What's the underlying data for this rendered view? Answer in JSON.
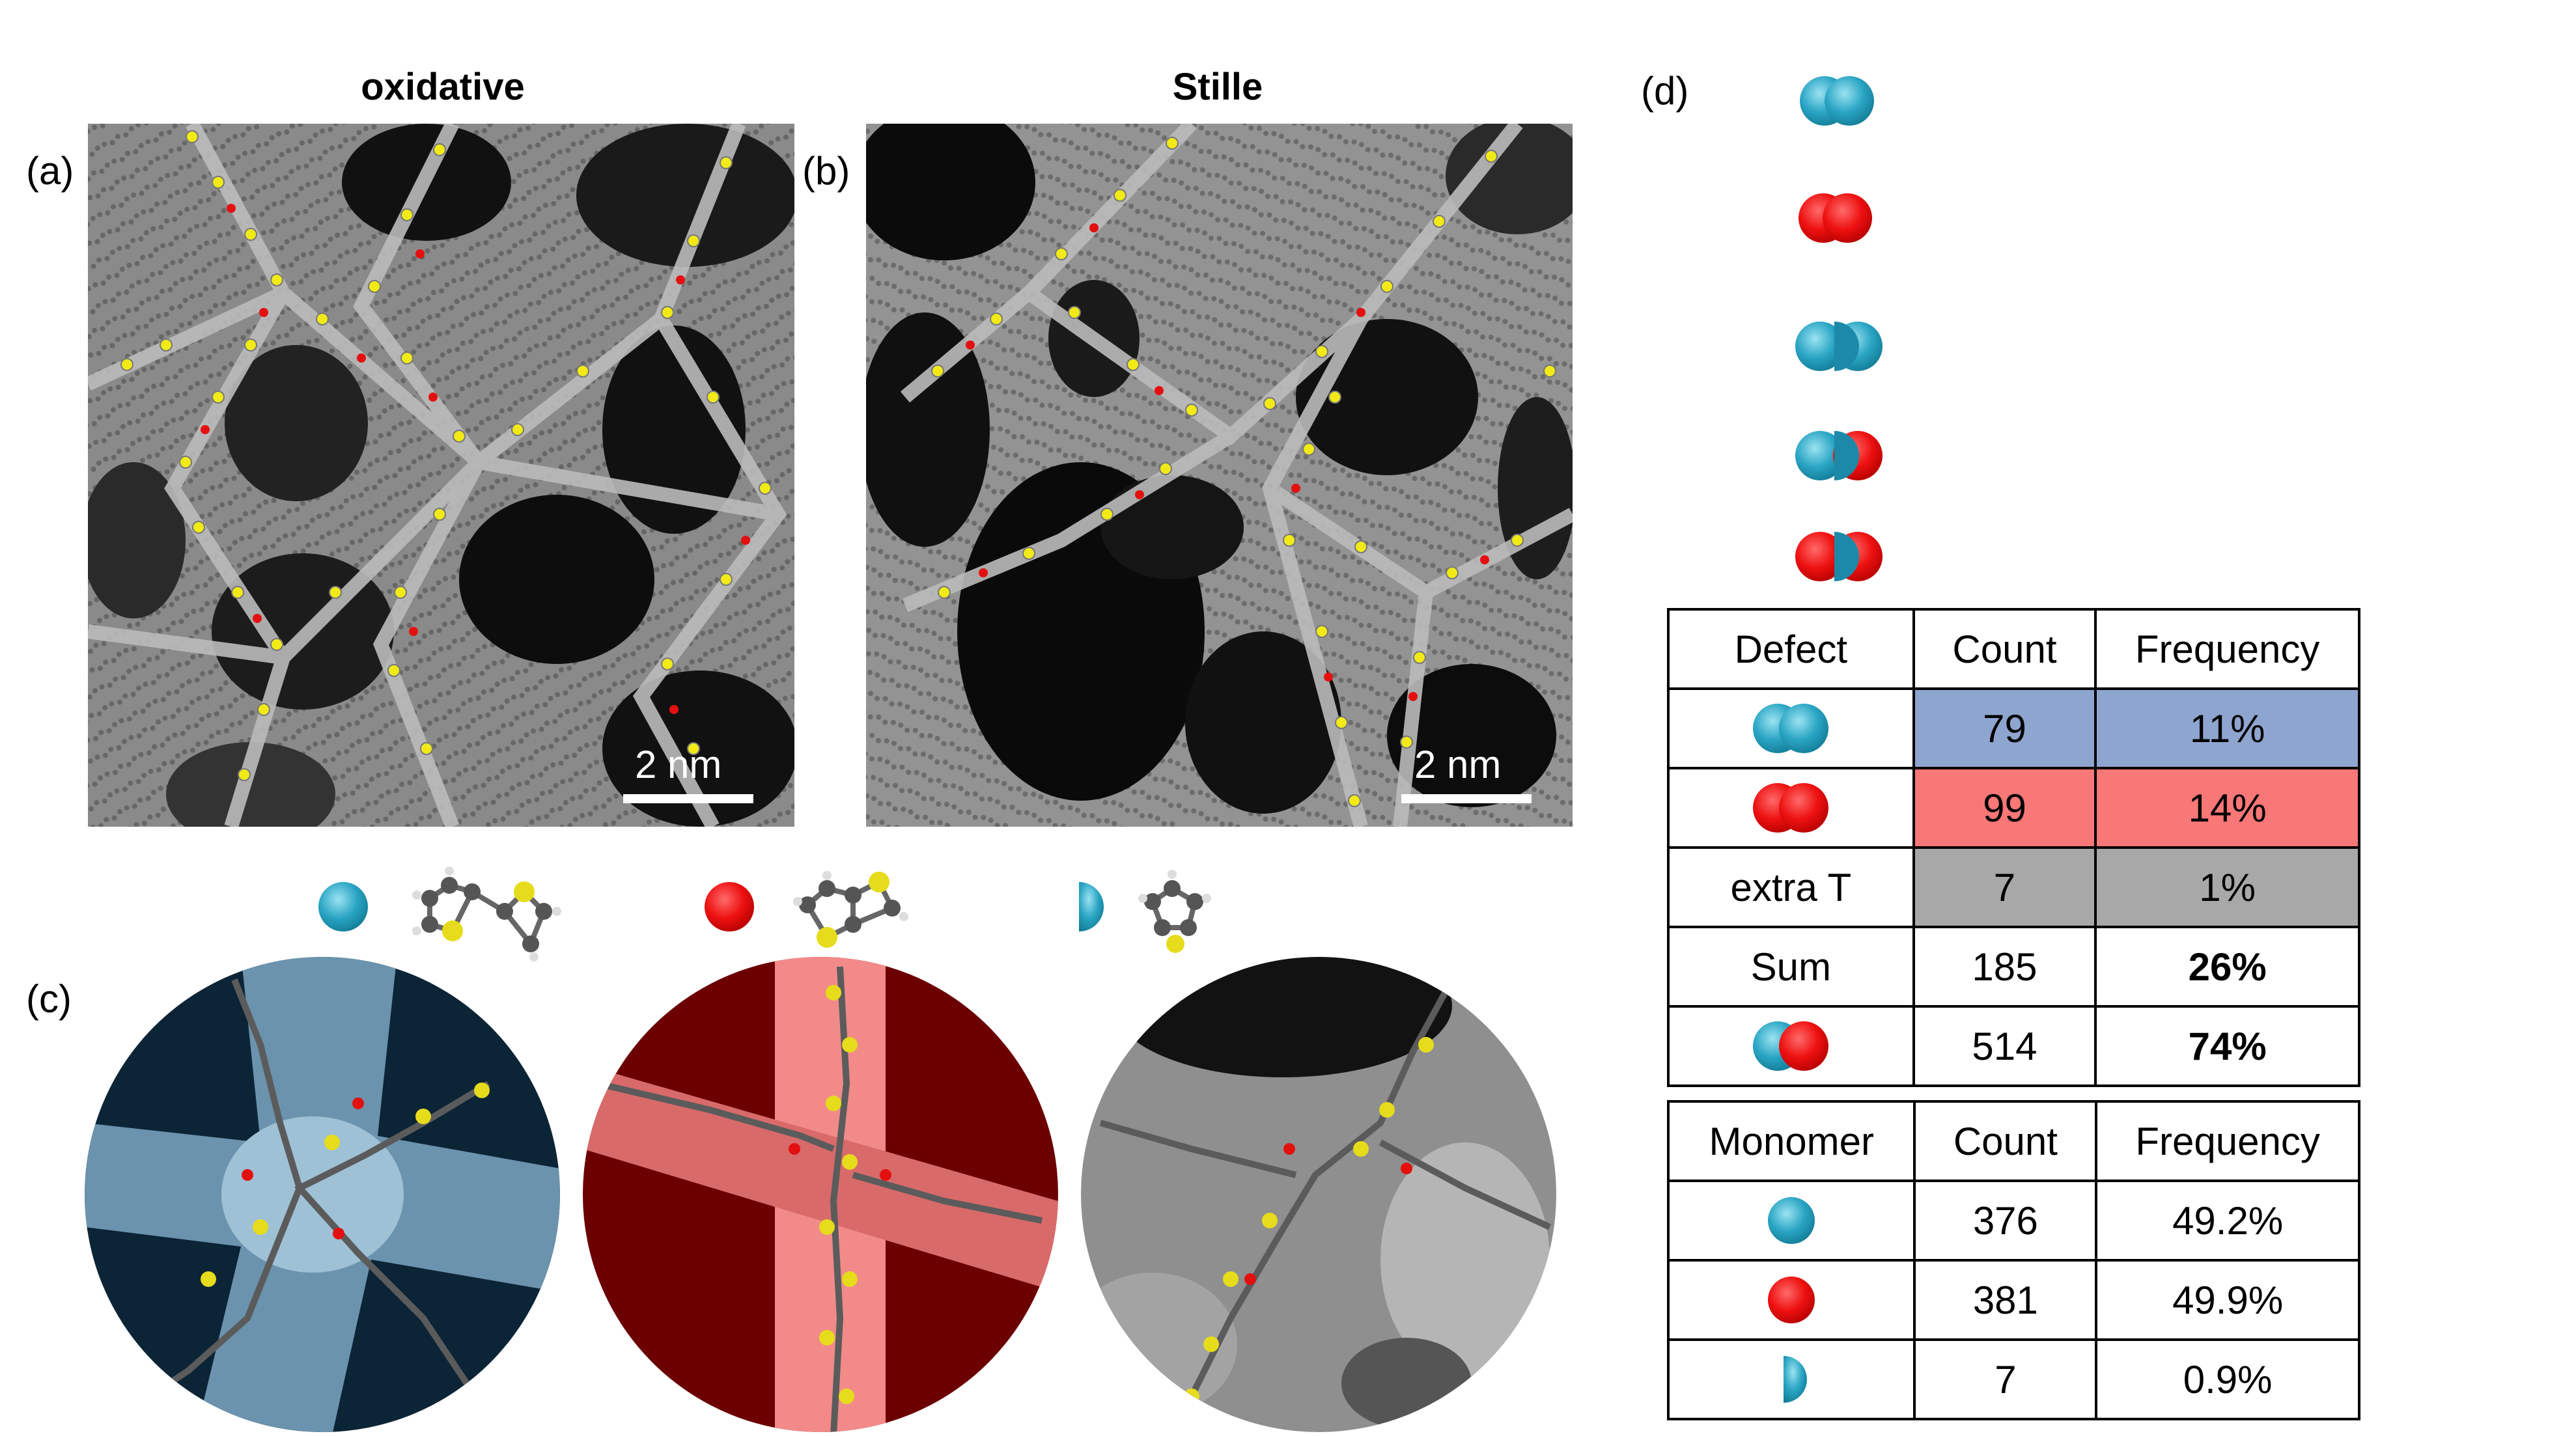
{
  "panel_titles": {
    "a": "oxidative",
    "b": "Stille"
  },
  "panel_labels": {
    "a": "(a)",
    "b": "(b)",
    "c": "(c)",
    "d": "(d)"
  },
  "scale_bars": {
    "a": "2 nm",
    "b": "2 nm"
  },
  "legend": {
    "blue_dimer": "blue-blue-pair-icon",
    "red_dimer": "red-red-pair-icon",
    "blue_half_blue": "blue-half-blue-icon",
    "blue_half_red": "blue-half-red-icon",
    "red_half_red": "red-half-red-icon"
  },
  "monomer_key": [
    {
      "symbol": "blue-circle-icon",
      "molecule": "bithiophene-molecule-icon"
    },
    {
      "symbol": "red-circle-icon",
      "molecule": "thienothiophene-molecule-icon"
    },
    {
      "symbol": "blue-half-circle-icon",
      "molecule": "thiophene-molecule-icon"
    }
  ],
  "defect_table": {
    "headers": [
      "Defect",
      "Count",
      "Frequency"
    ],
    "rows": [
      {
        "defect_icon": "blue-blue-pair-icon",
        "count": "79",
        "frequency": "11%",
        "color": "#8ea5cf"
      },
      {
        "defect_icon": "red-red-pair-icon",
        "count": "99",
        "frequency": "14%",
        "color": "#f87777"
      },
      {
        "defect": "extra T",
        "count": "7",
        "frequency": "1%",
        "color": "#a8a8a8"
      },
      {
        "defect": "Sum",
        "count": "185",
        "frequency": "26%"
      },
      {
        "defect_icon": "blue-red-pair-icon",
        "count": "514",
        "frequency": "74%"
      }
    ]
  },
  "monomer_table": {
    "headers": [
      "Monomer",
      "Count",
      "Frequency"
    ],
    "rows": [
      {
        "monomer_icon": "blue-circle-icon",
        "count": "376",
        "frequency": "49.2%"
      },
      {
        "monomer_icon": "red-circle-icon",
        "count": "381",
        "frequency": "49.9%"
      },
      {
        "monomer_icon": "blue-half-circle-icon",
        "count": "7",
        "frequency": "0.9%"
      }
    ]
  },
  "colors": {
    "blue": "#2aa5c4",
    "red": "#ee1111",
    "cell_blue": "#8ea5cf",
    "cell_red": "#f87777",
    "cell_grey": "#a8a8a8"
  }
}
